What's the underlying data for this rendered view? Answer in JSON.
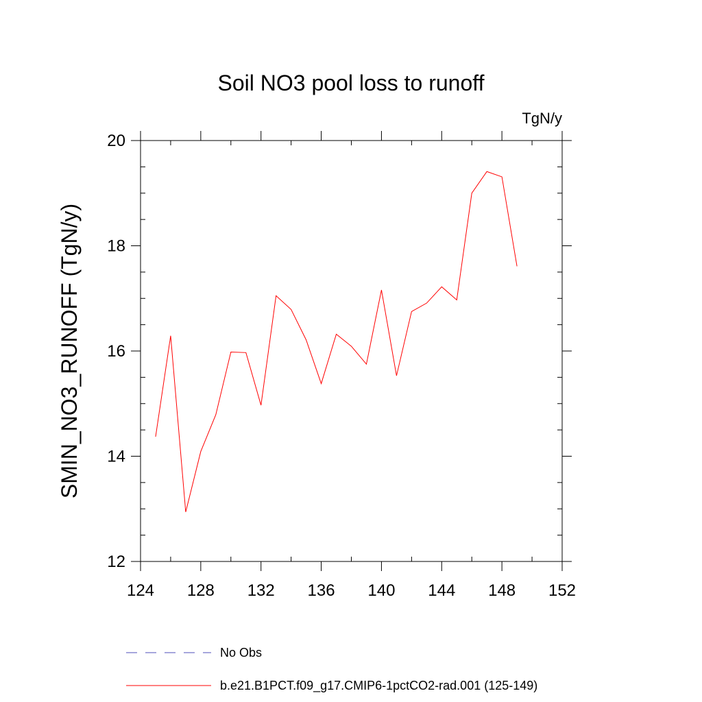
{
  "chart_data": {
    "type": "line",
    "title": "Soil NO3 pool loss to runoff",
    "units": "TgN/y",
    "ylabel": "SMIN_NO3_RUNOFF  (TgN/y)",
    "xlabel": "",
    "xlim": [
      124,
      152
    ],
    "ylim": [
      12,
      20
    ],
    "x_ticks": [
      124,
      128,
      132,
      136,
      140,
      144,
      148,
      152
    ],
    "y_ticks": [
      12,
      14,
      16,
      18,
      20
    ],
    "x_minor_step": 2,
    "y_minor_step": 0.5,
    "grid": false,
    "legend_placement": "bottom",
    "series": [
      {
        "name": "b.e21.B1PCT.f09_g17.CMIP6-1pctCO2-rad.001 (125-149)",
        "color": "#ff0000",
        "style": "solid",
        "x": [
          125,
          126,
          127,
          128,
          129,
          130,
          131,
          132,
          133,
          134,
          135,
          136,
          137,
          138,
          139,
          140,
          141,
          142,
          143,
          144,
          145,
          146,
          147,
          148,
          149
        ],
        "values": [
          14.37,
          16.29,
          12.94,
          14.09,
          14.79,
          15.98,
          15.97,
          14.97,
          17.05,
          16.79,
          16.21,
          15.38,
          16.32,
          16.09,
          15.75,
          17.16,
          15.53,
          16.75,
          16.91,
          17.22,
          16.97,
          19.0,
          19.41,
          19.31,
          17.61
        ]
      }
    ],
    "legend": [
      {
        "label": "No Obs",
        "color": "#4c4cb8",
        "style": "dashed"
      },
      {
        "label": "b.e21.B1PCT.f09_g17.CMIP6-1pctCO2-rad.001 (125-149)",
        "color": "#ff0000",
        "style": "solid"
      }
    ]
  }
}
